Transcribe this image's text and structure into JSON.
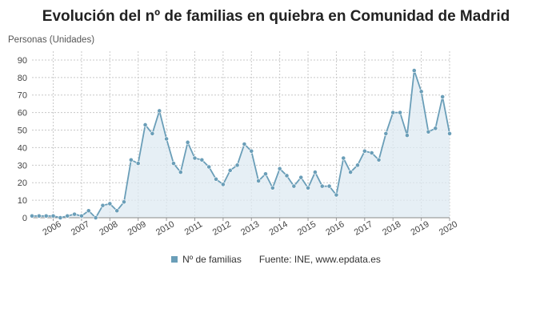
{
  "chart_data": {
    "type": "area",
    "title": "Evolución del nº de familias en quiebra en Comunidad de Madrid",
    "ylabel": "Personas (Unidades)",
    "xlabel": "",
    "ylim": [
      0,
      95
    ],
    "y_ticks": [
      0,
      10,
      20,
      30,
      40,
      50,
      60,
      70,
      80,
      90
    ],
    "x_tick_labels": [
      "2006",
      "2007",
      "2008",
      "2009",
      "2010",
      "2011",
      "2012",
      "2013",
      "2014",
      "2015",
      "2016",
      "2017",
      "2018",
      "2019",
      "2020"
    ],
    "grid": true,
    "legend_position": "bottom",
    "series": [
      {
        "name": "Nº de familias",
        "color": "#6a9eb8",
        "fill": "#dde9f2",
        "values": [
          1,
          1,
          1,
          1,
          0,
          1,
          2,
          1,
          4,
          0,
          7,
          8,
          4,
          9,
          33,
          31,
          53,
          48,
          61,
          45,
          31,
          26,
          43,
          34,
          33,
          29,
          22,
          19,
          27,
          30,
          42,
          38,
          21,
          25,
          17,
          28,
          24,
          18,
          23,
          17,
          26,
          18,
          18,
          13,
          34,
          26,
          30,
          38,
          37,
          33,
          48,
          60,
          60,
          47,
          84,
          72,
          49,
          51,
          69,
          48
        ]
      }
    ],
    "source": "Fuente: INE, www.epdata.es"
  }
}
